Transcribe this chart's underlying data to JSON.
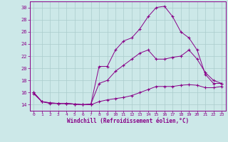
{
  "xlabel": "Windchill (Refroidissement éolien,°C)",
  "bg_color": "#cce8e8",
  "line_color": "#880088",
  "grid_color": "#aacccc",
  "xmin": -0.5,
  "xmax": 23.5,
  "ymin": 13.0,
  "ymax": 31.0,
  "yticks": [
    14,
    16,
    18,
    20,
    22,
    24,
    26,
    28,
    30
  ],
  "xticks": [
    0,
    1,
    2,
    3,
    4,
    5,
    6,
    7,
    8,
    9,
    10,
    11,
    12,
    13,
    14,
    15,
    16,
    17,
    18,
    19,
    20,
    21,
    22,
    23
  ],
  "line1_x": [
    0,
    1,
    2,
    3,
    4,
    5,
    6,
    7,
    8,
    9,
    10,
    11,
    12,
    13,
    14,
    15,
    16,
    17,
    18,
    19,
    20,
    21,
    22,
    23
  ],
  "line1_y": [
    16.0,
    14.5,
    14.3,
    14.2,
    14.2,
    14.1,
    14.0,
    14.1,
    20.3,
    20.3,
    23.0,
    24.5,
    25.0,
    26.5,
    28.5,
    30.0,
    30.2,
    28.5,
    26.0,
    25.0,
    23.0,
    19.0,
    17.5,
    17.5
  ],
  "line2_x": [
    0,
    1,
    2,
    3,
    4,
    5,
    6,
    7,
    8,
    9,
    10,
    11,
    12,
    13,
    14,
    15,
    16,
    17,
    18,
    19,
    20,
    21,
    22,
    23
  ],
  "line2_y": [
    16.0,
    14.5,
    14.3,
    14.2,
    14.2,
    14.1,
    14.0,
    14.1,
    17.5,
    18.0,
    19.5,
    20.5,
    21.5,
    22.5,
    23.0,
    21.5,
    21.5,
    21.8,
    22.0,
    23.0,
    21.5,
    19.3,
    18.0,
    17.5
  ],
  "line3_x": [
    0,
    1,
    2,
    3,
    4,
    5,
    6,
    7,
    8,
    9,
    10,
    11,
    12,
    13,
    14,
    15,
    16,
    17,
    18,
    19,
    20,
    21,
    22,
    23
  ],
  "line3_y": [
    15.8,
    14.5,
    14.2,
    14.2,
    14.2,
    14.1,
    14.0,
    14.0,
    14.5,
    14.8,
    15.0,
    15.2,
    15.5,
    16.0,
    16.5,
    17.0,
    17.0,
    17.0,
    17.2,
    17.3,
    17.2,
    16.8,
    16.8,
    17.0
  ]
}
